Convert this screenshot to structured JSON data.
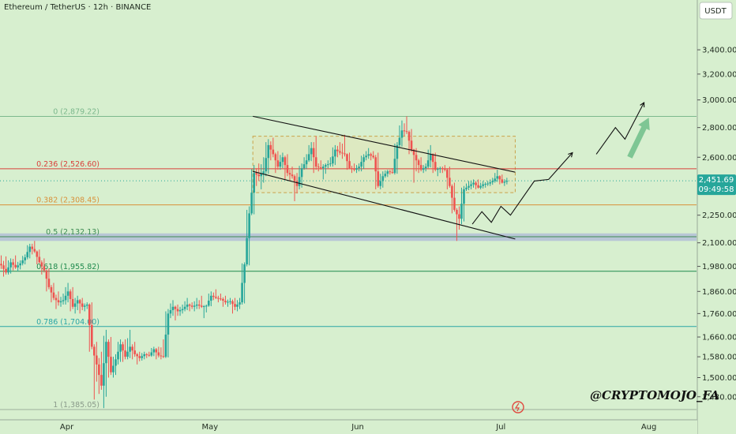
{
  "chart_data": {
    "type": "candlestick",
    "title": "Ethereum / TetherUS · 12h · BINANCE",
    "currency_label": "USDT",
    "y_axis": {
      "scale": "log",
      "range": [
        1385,
        3850
      ],
      "ticks": [
        "3,400.00",
        "3,200.00",
        "3,000.00",
        "2,800.00",
        "2,600.00",
        "2,450.00",
        "2,250.00",
        "2,100.00",
        "1,980.00",
        "1,860.00",
        "1,760.00",
        "1,660.00",
        "1,580.00",
        "1,500.00",
        "1,430.00"
      ],
      "tick_values": [
        3400,
        3200,
        3000,
        2800,
        2600,
        2450,
        2250,
        2100,
        1980,
        1860,
        1760,
        1660,
        1580,
        1500,
        1430
      ]
    },
    "x_axis": {
      "labels": [
        "Apr",
        "May",
        "Jun",
        "Jul",
        "Aug"
      ],
      "label_dates": [
        "2025-04-01",
        "2025-05-01",
        "2025-06-01",
        "2025-07-01",
        "2025-08-01"
      ],
      "range": [
        "2025-03-18",
        "2025-08-11"
      ]
    },
    "current_price": {
      "value": 2451.69,
      "label": "2,451.69",
      "countdown": "09:49:58",
      "color": "#26a69a"
    },
    "fib_levels": [
      {
        "ratio": "0",
        "price": 2879.22,
        "label": "0 (2,879.22)",
        "color": "#7cb88d"
      },
      {
        "ratio": "0.236",
        "price": 2526.6,
        "label": "0.236 (2,526.60)",
        "color": "#d9403a"
      },
      {
        "ratio": "0.382",
        "price": 2308.45,
        "label": "0.382 (2,308.45)",
        "color": "#d8913a"
      },
      {
        "ratio": "0.5",
        "price": 2132.13,
        "label": "0.5 (2,132.13)",
        "color": "#3e8c53"
      },
      {
        "ratio": "0.618",
        "price": 1955.82,
        "label": "0.618 (1,955.82)",
        "color": "#1f8a4d"
      },
      {
        "ratio": "0.786",
        "price": 1704.0,
        "label": "0.786 (1,704.00)",
        "color": "#2aa6a6"
      },
      {
        "ratio": "1",
        "price": 1385.05,
        "label": "1 (1,385.05)",
        "color": "#8a9a8a"
      }
    ],
    "support_zone": {
      "low": 2110,
      "high": 2150,
      "color": "#aeb8d8"
    },
    "range_box": {
      "start": "2025-05-10",
      "end": "2025-07-04",
      "low": 2380,
      "high": 2740,
      "color": "#c9a24a"
    },
    "channel_upper": [
      {
        "date": "2025-05-10",
        "price": 2880
      },
      {
        "date": "2025-07-04",
        "price": 2505
      }
    ],
    "channel_lower": [
      {
        "date": "2025-05-10",
        "price": 2510
      },
      {
        "date": "2025-07-04",
        "price": 2120
      }
    ],
    "projection_path": [
      {
        "date": "2025-06-25",
        "price": 2200
      },
      {
        "date": "2025-06-27",
        "price": 2270
      },
      {
        "date": "2025-06-29",
        "price": 2210
      },
      {
        "date": "2025-07-01",
        "price": 2300
      },
      {
        "date": "2025-07-03",
        "price": 2250
      },
      {
        "date": "2025-07-08",
        "price": 2450
      },
      {
        "date": "2025-07-11",
        "price": 2460
      },
      {
        "date": "2025-07-16",
        "price": 2630
      }
    ],
    "projection_path_2": [
      {
        "date": "2025-07-21",
        "price": 2620
      },
      {
        "date": "2025-07-25",
        "price": 2800
      },
      {
        "date": "2025-07-27",
        "price": 2720
      },
      {
        "date": "2025-07-31",
        "price": 2980
      }
    ],
    "big_arrow": {
      "from": {
        "date": "2025-07-28",
        "price": 2600
      },
      "to": {
        "date": "2025-08-01",
        "price": 2870
      },
      "color": "#6fbe8a"
    },
    "candles": [
      {
        "d": "2025-03-18",
        "o": 2000,
        "h": 2035,
        "l": 1950,
        "c": 1985
      },
      {
        "d": "2025-03-19",
        "o": 1985,
        "h": 2030,
        "l": 1930,
        "c": 1950
      },
      {
        "d": "2025-03-20",
        "o": 1950,
        "h": 2020,
        "l": 1940,
        "c": 2000
      },
      {
        "d": "2025-03-21",
        "o": 2000,
        "h": 2035,
        "l": 1960,
        "c": 1975
      },
      {
        "d": "2025-03-22",
        "o": 1975,
        "h": 2010,
        "l": 1955,
        "c": 1995
      },
      {
        "d": "2025-03-23",
        "o": 1995,
        "h": 2040,
        "l": 1985,
        "c": 2025
      },
      {
        "d": "2025-03-24",
        "o": 2025,
        "h": 2095,
        "l": 2015,
        "c": 2080
      },
      {
        "d": "2025-03-25",
        "o": 2080,
        "h": 2110,
        "l": 2040,
        "c": 2055
      },
      {
        "d": "2025-03-26",
        "o": 2055,
        "h": 2065,
        "l": 1990,
        "c": 2000
      },
      {
        "d": "2025-03-27",
        "o": 2000,
        "h": 2020,
        "l": 1940,
        "c": 1960
      },
      {
        "d": "2025-03-28",
        "o": 1960,
        "h": 1970,
        "l": 1860,
        "c": 1880
      },
      {
        "d": "2025-03-29",
        "o": 1880,
        "h": 1900,
        "l": 1810,
        "c": 1830
      },
      {
        "d": "2025-03-30",
        "o": 1830,
        "h": 1860,
        "l": 1780,
        "c": 1810
      },
      {
        "d": "2025-03-31",
        "o": 1810,
        "h": 1850,
        "l": 1790,
        "c": 1820
      },
      {
        "d": "2025-04-01",
        "o": 1820,
        "h": 1900,
        "l": 1800,
        "c": 1860
      },
      {
        "d": "2025-04-02",
        "o": 1860,
        "h": 1880,
        "l": 1770,
        "c": 1790
      },
      {
        "d": "2025-04-03",
        "o": 1790,
        "h": 1840,
        "l": 1760,
        "c": 1820
      },
      {
        "d": "2025-04-04",
        "o": 1820,
        "h": 1830,
        "l": 1760,
        "c": 1790
      },
      {
        "d": "2025-04-05",
        "o": 1790,
        "h": 1810,
        "l": 1770,
        "c": 1800
      },
      {
        "d": "2025-04-06",
        "o": 1800,
        "h": 1810,
        "l": 1600,
        "c": 1620
      },
      {
        "d": "2025-04-07",
        "o": 1620,
        "h": 1640,
        "l": 1420,
        "c": 1550
      },
      {
        "d": "2025-04-08",
        "o": 1550,
        "h": 1600,
        "l": 1440,
        "c": 1470
      },
      {
        "d": "2025-04-09",
        "o": 1470,
        "h": 1690,
        "l": 1390,
        "c": 1640
      },
      {
        "d": "2025-04-10",
        "o": 1640,
        "h": 1660,
        "l": 1500,
        "c": 1520
      },
      {
        "d": "2025-04-11",
        "o": 1520,
        "h": 1590,
        "l": 1500,
        "c": 1570
      },
      {
        "d": "2025-04-12",
        "o": 1570,
        "h": 1650,
        "l": 1550,
        "c": 1630
      },
      {
        "d": "2025-04-13",
        "o": 1630,
        "h": 1650,
        "l": 1560,
        "c": 1580
      },
      {
        "d": "2025-04-14",
        "o": 1580,
        "h": 1690,
        "l": 1570,
        "c": 1620
      },
      {
        "d": "2025-04-15",
        "o": 1620,
        "h": 1640,
        "l": 1570,
        "c": 1590
      },
      {
        "d": "2025-04-16",
        "o": 1590,
        "h": 1600,
        "l": 1550,
        "c": 1575
      },
      {
        "d": "2025-04-17",
        "o": 1575,
        "h": 1600,
        "l": 1565,
        "c": 1590
      },
      {
        "d": "2025-04-18",
        "o": 1590,
        "h": 1600,
        "l": 1575,
        "c": 1585
      },
      {
        "d": "2025-04-19",
        "o": 1585,
        "h": 1620,
        "l": 1580,
        "c": 1610
      },
      {
        "d": "2025-04-20",
        "o": 1610,
        "h": 1620,
        "l": 1570,
        "c": 1585
      },
      {
        "d": "2025-04-21",
        "o": 1585,
        "h": 1650,
        "l": 1570,
        "c": 1580
      },
      {
        "d": "2025-04-22",
        "o": 1580,
        "h": 1780,
        "l": 1575,
        "c": 1760
      },
      {
        "d": "2025-04-23",
        "o": 1760,
        "h": 1820,
        "l": 1740,
        "c": 1790
      },
      {
        "d": "2025-04-24",
        "o": 1790,
        "h": 1800,
        "l": 1730,
        "c": 1770
      },
      {
        "d": "2025-04-25",
        "o": 1770,
        "h": 1800,
        "l": 1750,
        "c": 1780
      },
      {
        "d": "2025-04-26",
        "o": 1780,
        "h": 1830,
        "l": 1770,
        "c": 1800
      },
      {
        "d": "2025-04-27",
        "o": 1800,
        "h": 1810,
        "l": 1770,
        "c": 1790
      },
      {
        "d": "2025-04-28",
        "o": 1790,
        "h": 1830,
        "l": 1770,
        "c": 1800
      },
      {
        "d": "2025-04-29",
        "o": 1800,
        "h": 1840,
        "l": 1780,
        "c": 1790
      },
      {
        "d": "2025-04-30",
        "o": 1790,
        "h": 1800,
        "l": 1740,
        "c": 1795
      },
      {
        "d": "2025-05-01",
        "o": 1795,
        "h": 1860,
        "l": 1790,
        "c": 1840
      },
      {
        "d": "2025-05-02",
        "o": 1840,
        "h": 1870,
        "l": 1820,
        "c": 1830
      },
      {
        "d": "2025-05-03",
        "o": 1830,
        "h": 1850,
        "l": 1810,
        "c": 1825
      },
      {
        "d": "2025-05-04",
        "o": 1825,
        "h": 1840,
        "l": 1790,
        "c": 1810
      },
      {
        "d": "2025-05-05",
        "o": 1810,
        "h": 1830,
        "l": 1790,
        "c": 1815
      },
      {
        "d": "2025-05-06",
        "o": 1815,
        "h": 1830,
        "l": 1760,
        "c": 1790
      },
      {
        "d": "2025-05-07",
        "o": 1790,
        "h": 1830,
        "l": 1770,
        "c": 1810
      },
      {
        "d": "2025-05-08",
        "o": 1810,
        "h": 2000,
        "l": 1800,
        "c": 1990
      },
      {
        "d": "2025-05-09",
        "o": 1990,
        "h": 2300,
        "l": 1980,
        "c": 2260
      },
      {
        "d": "2025-05-10",
        "o": 2260,
        "h": 2550,
        "l": 2250,
        "c": 2500
      },
      {
        "d": "2025-05-11",
        "o": 2500,
        "h": 2560,
        "l": 2420,
        "c": 2480
      },
      {
        "d": "2025-05-12",
        "o": 2480,
        "h": 2600,
        "l": 2400,
        "c": 2510
      },
      {
        "d": "2025-05-13",
        "o": 2510,
        "h": 2720,
        "l": 2480,
        "c": 2680
      },
      {
        "d": "2025-05-14",
        "o": 2680,
        "h": 2730,
        "l": 2580,
        "c": 2620
      },
      {
        "d": "2025-05-15",
        "o": 2620,
        "h": 2640,
        "l": 2500,
        "c": 2540
      },
      {
        "d": "2025-05-16",
        "o": 2540,
        "h": 2630,
        "l": 2520,
        "c": 2600
      },
      {
        "d": "2025-05-17",
        "o": 2600,
        "h": 2620,
        "l": 2460,
        "c": 2500
      },
      {
        "d": "2025-05-18",
        "o": 2500,
        "h": 2540,
        "l": 2450,
        "c": 2480
      },
      {
        "d": "2025-05-19",
        "o": 2480,
        "h": 2500,
        "l": 2330,
        "c": 2420
      },
      {
        "d": "2025-05-20",
        "o": 2420,
        "h": 2560,
        "l": 2400,
        "c": 2530
      },
      {
        "d": "2025-05-21",
        "o": 2530,
        "h": 2620,
        "l": 2520,
        "c": 2580
      },
      {
        "d": "2025-05-22",
        "o": 2580,
        "h": 2700,
        "l": 2570,
        "c": 2660
      },
      {
        "d": "2025-05-23",
        "o": 2660,
        "h": 2740,
        "l": 2500,
        "c": 2540
      },
      {
        "d": "2025-05-24",
        "o": 2540,
        "h": 2580,
        "l": 2510,
        "c": 2530
      },
      {
        "d": "2025-05-25",
        "o": 2530,
        "h": 2560,
        "l": 2460,
        "c": 2550
      },
      {
        "d": "2025-05-26",
        "o": 2550,
        "h": 2600,
        "l": 2530,
        "c": 2560
      },
      {
        "d": "2025-05-27",
        "o": 2560,
        "h": 2680,
        "l": 2540,
        "c": 2650
      },
      {
        "d": "2025-05-28",
        "o": 2650,
        "h": 2700,
        "l": 2600,
        "c": 2630
      },
      {
        "d": "2025-05-29",
        "o": 2630,
        "h": 2750,
        "l": 2590,
        "c": 2620
      },
      {
        "d": "2025-05-30",
        "o": 2620,
        "h": 2630,
        "l": 2520,
        "c": 2530
      },
      {
        "d": "2025-05-31",
        "o": 2530,
        "h": 2560,
        "l": 2500,
        "c": 2520
      },
      {
        "d": "2025-06-01",
        "o": 2520,
        "h": 2560,
        "l": 2500,
        "c": 2540
      },
      {
        "d": "2025-06-02",
        "o": 2540,
        "h": 2620,
        "l": 2510,
        "c": 2600
      },
      {
        "d": "2025-06-03",
        "o": 2600,
        "h": 2660,
        "l": 2580,
        "c": 2620
      },
      {
        "d": "2025-06-04",
        "o": 2620,
        "h": 2640,
        "l": 2580,
        "c": 2600
      },
      {
        "d": "2025-06-05",
        "o": 2600,
        "h": 2630,
        "l": 2400,
        "c": 2420
      },
      {
        "d": "2025-06-06",
        "o": 2420,
        "h": 2510,
        "l": 2400,
        "c": 2480
      },
      {
        "d": "2025-06-07",
        "o": 2480,
        "h": 2520,
        "l": 2470,
        "c": 2510
      },
      {
        "d": "2025-06-08",
        "o": 2510,
        "h": 2530,
        "l": 2490,
        "c": 2500
      },
      {
        "d": "2025-06-09",
        "o": 2500,
        "h": 2700,
        "l": 2490,
        "c": 2680
      },
      {
        "d": "2025-06-10",
        "o": 2680,
        "h": 2850,
        "l": 2660,
        "c": 2780
      },
      {
        "d": "2025-06-11",
        "o": 2780,
        "h": 2880,
        "l": 2740,
        "c": 2770
      },
      {
        "d": "2025-06-12",
        "o": 2770,
        "h": 2790,
        "l": 2620,
        "c": 2650
      },
      {
        "d": "2025-06-13",
        "o": 2650,
        "h": 2660,
        "l": 2440,
        "c": 2580
      },
      {
        "d": "2025-06-14",
        "o": 2580,
        "h": 2600,
        "l": 2500,
        "c": 2520
      },
      {
        "d": "2025-06-15",
        "o": 2520,
        "h": 2560,
        "l": 2500,
        "c": 2540
      },
      {
        "d": "2025-06-16",
        "o": 2540,
        "h": 2680,
        "l": 2530,
        "c": 2620
      },
      {
        "d": "2025-06-17",
        "o": 2620,
        "h": 2630,
        "l": 2500,
        "c": 2520
      },
      {
        "d": "2025-06-18",
        "o": 2520,
        "h": 2540,
        "l": 2480,
        "c": 2530
      },
      {
        "d": "2025-06-19",
        "o": 2530,
        "h": 2550,
        "l": 2500,
        "c": 2520
      },
      {
        "d": "2025-06-20",
        "o": 2520,
        "h": 2540,
        "l": 2400,
        "c": 2420
      },
      {
        "d": "2025-06-21",
        "o": 2420,
        "h": 2440,
        "l": 2260,
        "c": 2280
      },
      {
        "d": "2025-06-22",
        "o": 2280,
        "h": 2300,
        "l": 2110,
        "c": 2230
      },
      {
        "d": "2025-06-23",
        "o": 2230,
        "h": 2420,
        "l": 2200,
        "c": 2400
      },
      {
        "d": "2025-06-24",
        "o": 2400,
        "h": 2450,
        "l": 2390,
        "c": 2420
      },
      {
        "d": "2025-06-25",
        "o": 2420,
        "h": 2460,
        "l": 2400,
        "c": 2440
      },
      {
        "d": "2025-06-26",
        "o": 2440,
        "h": 2460,
        "l": 2400,
        "c": 2410
      },
      {
        "d": "2025-06-27",
        "o": 2410,
        "h": 2450,
        "l": 2400,
        "c": 2430
      },
      {
        "d": "2025-06-28",
        "o": 2430,
        "h": 2450,
        "l": 2410,
        "c": 2435
      },
      {
        "d": "2025-06-29",
        "o": 2435,
        "h": 2470,
        "l": 2420,
        "c": 2450
      },
      {
        "d": "2025-06-30",
        "o": 2450,
        "h": 2520,
        "l": 2440,
        "c": 2480
      },
      {
        "d": "2025-07-01",
        "o": 2480,
        "h": 2490,
        "l": 2430,
        "c": 2440
      },
      {
        "d": "2025-07-02",
        "o": 2440,
        "h": 2470,
        "l": 2420,
        "c": 2451.69
      }
    ]
  },
  "watermark": "@CRYPTOMOJO_FA"
}
